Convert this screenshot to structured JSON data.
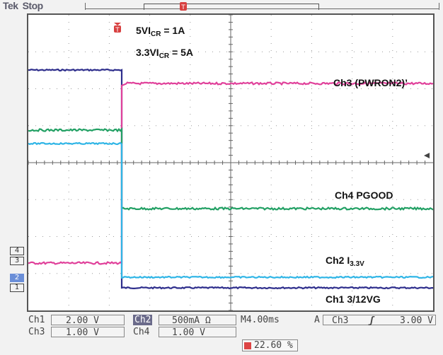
{
  "header": {
    "brand": "Tek",
    "state": "Stop"
  },
  "annotations": {
    "line1_main": "5VI",
    "line1_sub": "CR",
    "line1_value": " = 1A",
    "line2_main": "3.3VI",
    "line2_sub": "CR",
    "line2_value": " = 5A"
  },
  "trace_labels": {
    "ch3": "Ch3 (PWRON2)’",
    "ch4": "Ch4 PGOOD",
    "ch2_main": "Ch2 I",
    "ch2_sub": "3.3V",
    "ch1": "Ch1 3/12VG"
  },
  "channel_markers": [
    "4",
    "3",
    "2",
    "1"
  ],
  "status": {
    "ch1_label": "Ch1",
    "ch1_scale": "2.00 V",
    "ch2_label": "Ch2",
    "ch2_scale": "500mA Ω",
    "timebase": "M4.00ms",
    "trigger_mode": "A",
    "trigger_source": "Ch3",
    "trigger_slope": "ʃ",
    "trigger_level": "3.00 V",
    "ch3_label": "Ch3",
    "ch3_scale": "1.00 V",
    "ch4_label": "Ch4",
    "ch4_scale": "1.00 V",
    "trigger_position": "22.60 %"
  },
  "colors": {
    "ch1": "#2e2e8c",
    "ch2": "#2fb5e6",
    "ch3": "#e0409a",
    "ch4": "#22a064",
    "grid": "#9a9a9a",
    "trigger_marker": "#d84040"
  }
}
